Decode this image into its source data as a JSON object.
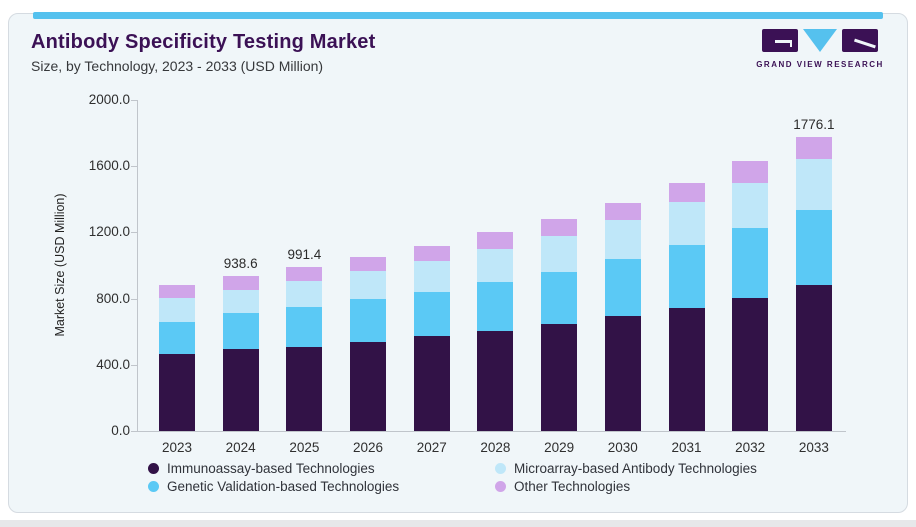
{
  "header": {
    "title": "Antibody Specificity Testing Market",
    "subtitle": "Size, by Technology, 2023 - 2033 (USD Million)",
    "brand_wordmark": "GRAND VIEW RESEARCH"
  },
  "colors": {
    "card_background": "#f0f6f9",
    "accent_bar": "#54c1ee",
    "title_text": "#3b1155",
    "axis_line": "#c0c5cb",
    "immunoassay": "#321247",
    "genetic_validation": "#5bc9f5",
    "microarray": "#bfe7f9",
    "other": "#d0a5e9"
  },
  "chart_data": {
    "type": "bar",
    "stacked": true,
    "title": "Antibody Specificity Testing Market",
    "subtitle": "Size, by Technology, 2023 - 2033 (USD Million)",
    "xlabel": "",
    "ylabel": "Market Size (USD Million)",
    "ylim": [
      0,
      2000
    ],
    "yticks": [
      0,
      400,
      800,
      1200,
      1600,
      2000
    ],
    "ytick_format": "one_decimal",
    "grid": false,
    "legend_position": "bottom",
    "categories": [
      "2023",
      "2024",
      "2025",
      "2026",
      "2027",
      "2028",
      "2029",
      "2030",
      "2031",
      "2032",
      "2033"
    ],
    "series": [
      {
        "name": "Immunoassay-based Technologies",
        "color": "#321247",
        "values": [
          465,
          498,
          510,
          540,
          572,
          607,
          646,
          692,
          745,
          806,
          880
        ]
      },
      {
        "name": "Genetic Validation-based Technologies",
        "color": "#5bc9f5",
        "values": [
          195,
          215,
          240,
          258,
          270,
          295,
          316,
          349,
          380,
          418,
          458
        ]
      },
      {
        "name": "Microarray-based Antibody Technologies",
        "color": "#bfe7f9",
        "values": [
          143,
          139,
          158,
          172,
          188,
          196,
          217,
          235,
          256,
          276,
          308
        ]
      },
      {
        "name": "Other Technologies",
        "color": "#d0a5e9",
        "values": [
          82,
          86.6,
          83.4,
          82,
          86,
          102,
          102,
          103,
          118,
          132,
          130.1
        ]
      }
    ],
    "bar_total_labels": [
      "",
      "938.6",
      "991.4",
      "",
      "",
      "",
      "",
      "",
      "",
      "",
      "1776.1"
    ],
    "totals": [
      885,
      938.6,
      991.4,
      1052,
      1116,
      1200,
      1281,
      1379,
      1499,
      1632,
      1776.1
    ]
  },
  "legend": {
    "items": [
      {
        "label": "Immunoassay-based Technologies",
        "color": "#321247"
      },
      {
        "label": "Microarray-based Antibody Technologies",
        "color": "#bfe7f9"
      },
      {
        "label": "Genetic Validation-based Technologies",
        "color": "#5bc9f5"
      },
      {
        "label": "Other Technologies",
        "color": "#d0a5e9"
      }
    ]
  }
}
